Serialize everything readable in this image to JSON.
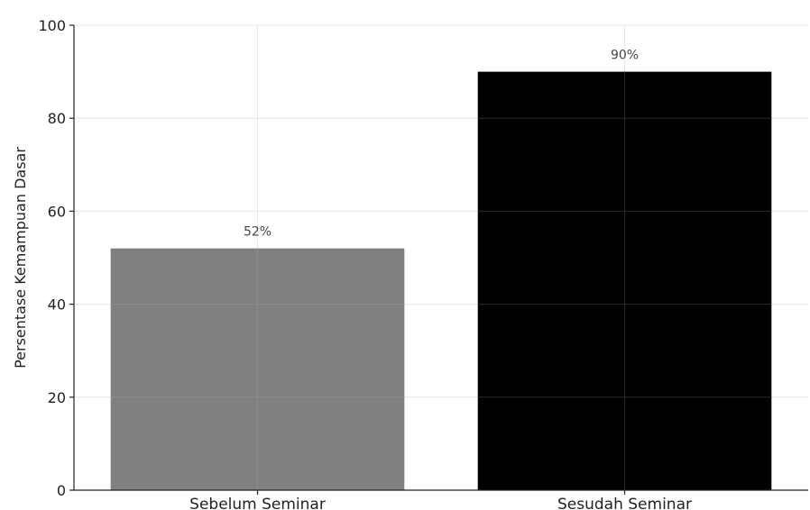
{
  "chart_data": {
    "type": "bar",
    "categories": [
      "Sebelum Seminar",
      "Sesudah Seminar"
    ],
    "values": [
      52,
      90
    ],
    "data_labels": [
      "52%",
      "90%"
    ],
    "bar_colors": [
      "#808080",
      "#000000"
    ],
    "title": "",
    "xlabel": "",
    "ylabel": "Persentase Kemampuan Dasar",
    "ylim": [
      0,
      100
    ],
    "yticks": [
      0,
      20,
      40,
      60,
      80,
      100
    ],
    "grid": true
  }
}
